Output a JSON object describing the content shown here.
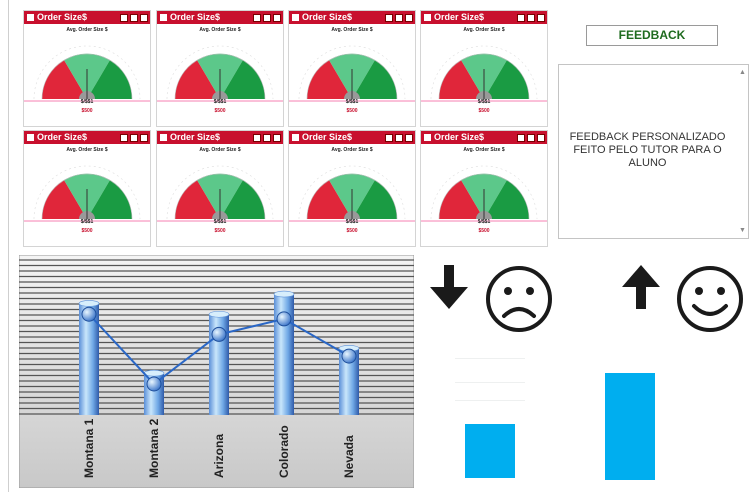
{
  "gauges": {
    "title": "Order Size$",
    "subtitle": "Avg. Order Size $",
    "value": "$/$$1",
    "amount": "$500"
  },
  "feedback": {
    "button_label": "FEEDBACK",
    "text": "FEEDBACK PERSONALIZADO FEITO PELO TUTOR PARA O ALUNO"
  },
  "chart_data": {
    "type": "line",
    "categories": [
      "Montana 1",
      "Montana 2",
      "Arizona",
      "Colorado",
      "Nevada"
    ],
    "series": [
      {
        "values": [
          65,
          20,
          52,
          62,
          38
        ]
      }
    ],
    "bars": [
      72,
      27,
      65,
      78,
      43
    ],
    "ylim": [
      0,
      100
    ],
    "grid": true
  },
  "feedback_bars": {
    "values": [
      28,
      55
    ],
    "ylim": [
      0,
      100
    ],
    "indicators": [
      "arrow-down-icon",
      "sad-face-icon",
      "arrow-up-icon",
      "happy-face-icon"
    ]
  },
  "colors": {
    "gauge_red": "#e0263a",
    "gauge_green": "#1a9b43",
    "gauge_lightgreen": "#5cc88a",
    "title_red": "#c8102e",
    "bar_blue": "#00aeef"
  }
}
